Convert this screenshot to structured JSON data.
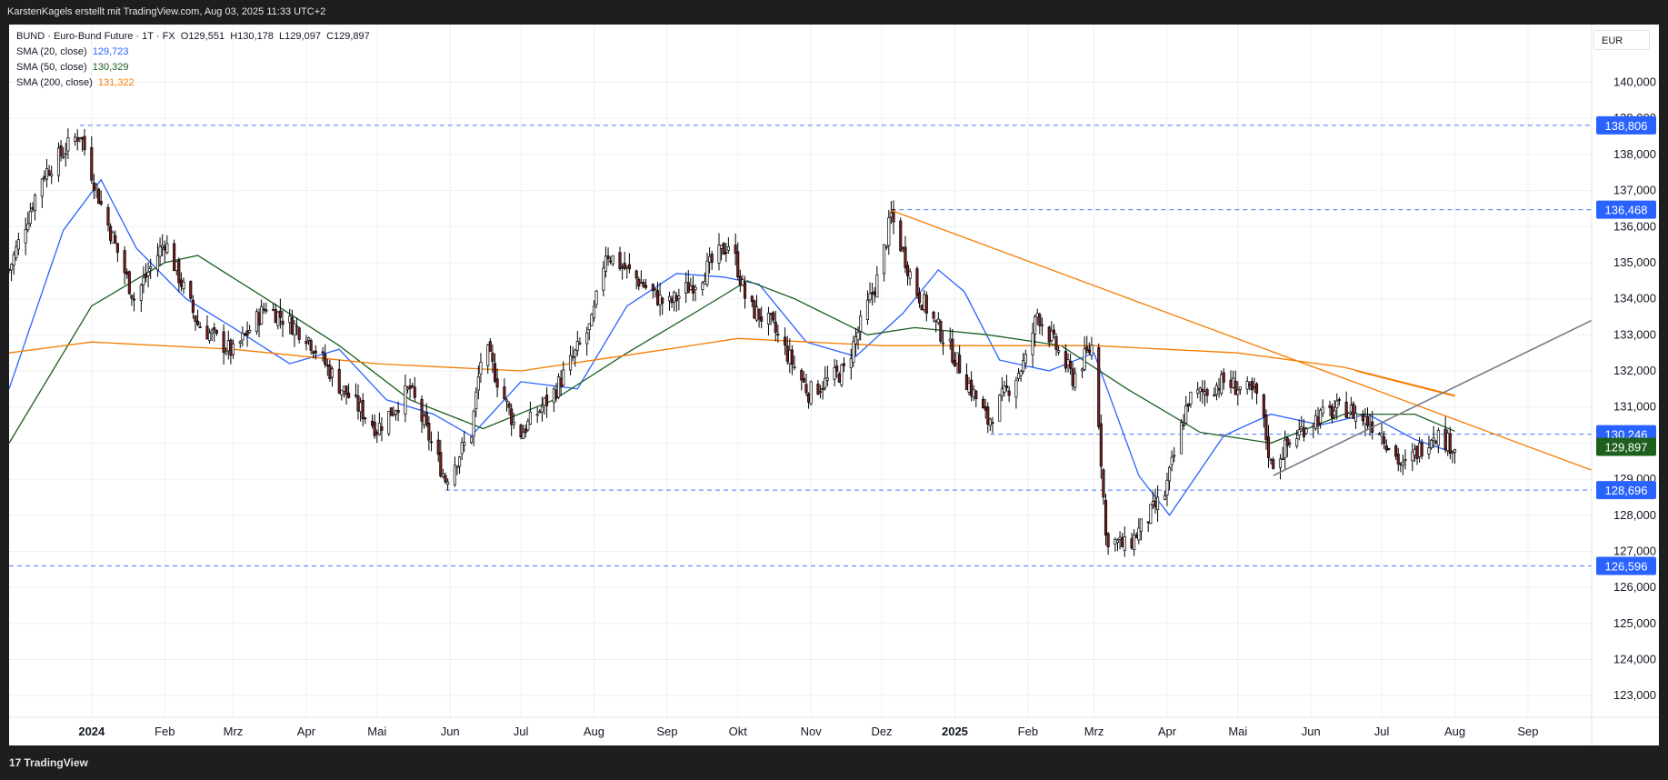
{
  "header": {
    "attribution": "KarstenKagels erstellt mit TradingView.com, Aug 03, 2025 11:33 UTC+2"
  },
  "legend": {
    "symbol_line": "BUND · Euro-Bund Future · 1T · FX",
    "ohlc": {
      "open_label": "O",
      "open": "129,551",
      "high_label": "H",
      "high": "130,178",
      "low_label": "L",
      "low": "129,097",
      "close_label": "C",
      "close": "129,897"
    },
    "indicators": [
      {
        "label": "SMA (20, close)",
        "value": "129,723",
        "color": "#2962ff"
      },
      {
        "label": "SMA (50, close)",
        "value": "130,329",
        "color": "#1b5e20"
      },
      {
        "label": "SMA (200, close)",
        "value": "131,322",
        "color": "#f57c00"
      }
    ]
  },
  "currency": "EUR",
  "footer": {
    "brand": "TradingView",
    "logo_icon": "tradingview-logo-icon"
  },
  "colors": {
    "up_candle": "#ffffff",
    "down_candle": "#7a1f1f",
    "candle_border": "#000000",
    "sma20": "#2962ff",
    "sma50": "#1b5e20",
    "sma200": "#f57c00",
    "level_line": "#2962ff",
    "level_label_bg": "#2962ff",
    "last_price_bg": "#1e5f1e",
    "trendline_down": "#f57c00",
    "trendline_up": "#787b86",
    "grid": "#eef0f4"
  },
  "chart_data": {
    "type": "candlestick",
    "title": "BUND · Euro-Bund Future · 1T · FX",
    "x_tick_labels": [
      "2024",
      "Feb",
      "Mrz",
      "Apr",
      "Mai",
      "Jun",
      "Jul",
      "Aug",
      "Sep",
      "Okt",
      "Nov",
      "Dez",
      "2025",
      "Feb",
      "Mrz",
      "Apr",
      "Mai",
      "Jun",
      "Jul",
      "Aug",
      "Sep"
    ],
    "x_tick_dates": [
      "2024-01-01",
      "2024-02-01",
      "2024-03-01",
      "2024-04-01",
      "2024-05-01",
      "2024-06-01",
      "2024-07-01",
      "2024-08-01",
      "2024-09-01",
      "2024-10-01",
      "2024-11-01",
      "2024-12-01",
      "2025-01-01",
      "2025-02-01",
      "2025-03-01",
      "2025-04-01",
      "2025-05-01",
      "2025-06-01",
      "2025-07-01",
      "2025-08-01",
      "2025-09-01"
    ],
    "x_range": [
      "2023-11-27",
      "2025-09-28"
    ],
    "y_tick_labels": [
      "123,000",
      "124,000",
      "125,000",
      "126,000",
      "127,000",
      "128,000",
      "129,000",
      "130,000",
      "131,000",
      "132,000",
      "133,000",
      "134,000",
      "135,000",
      "136,000",
      "137,000",
      "138,000",
      "139,000",
      "140,000"
    ],
    "ylim": [
      122.4,
      141.6
    ],
    "grid": true,
    "candles_approx": [
      [
        "2023-11-27",
        134.8
      ],
      [
        "2023-12-11",
        137.4
      ],
      [
        "2023-12-27",
        138.6
      ],
      [
        "2024-01-05",
        136.6
      ],
      [
        "2024-01-19",
        134.0
      ],
      [
        "2024-02-01",
        135.6
      ],
      [
        "2024-02-15",
        133.3
      ],
      [
        "2024-03-01",
        132.5
      ],
      [
        "2024-03-15",
        133.8
      ],
      [
        "2024-04-01",
        133.0
      ],
      [
        "2024-04-15",
        131.6
      ],
      [
        "2024-05-01",
        130.4
      ],
      [
        "2024-05-15",
        131.5
      ],
      [
        "2024-05-30",
        129.0
      ],
      [
        "2024-06-10",
        130.3
      ],
      [
        "2024-06-15",
        132.8
      ],
      [
        "2024-06-30",
        130.2
      ],
      [
        "2024-07-15",
        131.4
      ],
      [
        "2024-07-31",
        133.3
      ],
      [
        "2024-08-06",
        135.3
      ],
      [
        "2024-08-20",
        134.5
      ],
      [
        "2024-09-01",
        133.8
      ],
      [
        "2024-09-15",
        134.6
      ],
      [
        "2024-09-28",
        135.6
      ],
      [
        "2024-10-05",
        133.8
      ],
      [
        "2024-10-15",
        133.3
      ],
      [
        "2024-10-31",
        131.4
      ],
      [
        "2024-11-15",
        132.0
      ],
      [
        "2024-11-30",
        134.7
      ],
      [
        "2024-12-05",
        136.3
      ],
      [
        "2024-12-15",
        134.3
      ],
      [
        "2024-12-31",
        132.5
      ],
      [
        "2025-01-15",
        130.6
      ],
      [
        "2025-01-31",
        132.3
      ],
      [
        "2025-02-05",
        133.6
      ],
      [
        "2025-02-20",
        131.8
      ],
      [
        "2025-03-01",
        132.8
      ],
      [
        "2025-03-06",
        127.4
      ],
      [
        "2025-03-15",
        127.1
      ],
      [
        "2025-03-31",
        128.6
      ],
      [
        "2025-04-10",
        131.2
      ],
      [
        "2025-04-25",
        131.7
      ],
      [
        "2025-05-10",
        131.3
      ],
      [
        "2025-05-15",
        129.4
      ],
      [
        "2025-05-31",
        130.6
      ],
      [
        "2025-06-15",
        131.0
      ],
      [
        "2025-06-30",
        130.4
      ],
      [
        "2025-07-10",
        129.3
      ],
      [
        "2025-07-23",
        130.3
      ],
      [
        "2025-08-01",
        129.897
      ]
    ],
    "series": [
      {
        "name": "SMA (20, close)",
        "last_value": 129.723,
        "points": [
          [
            "2023-11-27",
            131.5
          ],
          [
            "2023-12-20",
            135.9
          ],
          [
            "2024-01-05",
            137.3
          ],
          [
            "2024-01-20",
            135.4
          ],
          [
            "2024-02-10",
            134.0
          ],
          [
            "2024-03-01",
            133.2
          ],
          [
            "2024-03-25",
            132.2
          ],
          [
            "2024-04-15",
            132.6
          ],
          [
            "2024-05-05",
            131.2
          ],
          [
            "2024-05-25",
            130.8
          ],
          [
            "2024-06-10",
            130.2
          ],
          [
            "2024-07-01",
            131.7
          ],
          [
            "2024-07-25",
            131.5
          ],
          [
            "2024-08-15",
            133.8
          ],
          [
            "2024-09-05",
            134.7
          ],
          [
            "2024-09-25",
            134.6
          ],
          [
            "2024-10-10",
            134.4
          ],
          [
            "2024-10-30",
            132.8
          ],
          [
            "2024-11-20",
            132.4
          ],
          [
            "2024-12-10",
            133.6
          ],
          [
            "2024-12-25",
            134.8
          ],
          [
            "2025-01-05",
            134.2
          ],
          [
            "2025-01-20",
            132.3
          ],
          [
            "2025-02-10",
            132.0
          ],
          [
            "2025-03-01",
            132.5
          ],
          [
            "2025-03-20",
            129.1
          ],
          [
            "2025-04-02",
            128.0
          ],
          [
            "2025-04-25",
            130.2
          ],
          [
            "2025-05-15",
            130.8
          ],
          [
            "2025-06-05",
            130.5
          ],
          [
            "2025-06-25",
            130.8
          ],
          [
            "2025-07-15",
            130.1
          ],
          [
            "2025-08-01",
            129.723
          ]
        ]
      },
      {
        "name": "SMA (50, close)",
        "last_value": 130.329,
        "points": [
          [
            "2023-11-27",
            130.0
          ],
          [
            "2024-01-01",
            133.8
          ],
          [
            "2024-02-01",
            135.0
          ],
          [
            "2024-02-15",
            135.2
          ],
          [
            "2024-03-15",
            134.0
          ],
          [
            "2024-04-15",
            132.7
          ],
          [
            "2024-05-15",
            131.2
          ],
          [
            "2024-06-15",
            130.4
          ],
          [
            "2024-07-15",
            131.2
          ],
          [
            "2024-08-15",
            132.5
          ],
          [
            "2024-09-15",
            133.7
          ],
          [
            "2024-10-05",
            134.5
          ],
          [
            "2024-10-25",
            134.0
          ],
          [
            "2024-11-25",
            133.0
          ],
          [
            "2024-12-15",
            133.2
          ],
          [
            "2025-01-15",
            133.0
          ],
          [
            "2025-02-15",
            132.7
          ],
          [
            "2025-03-15",
            131.5
          ],
          [
            "2025-04-15",
            130.3
          ],
          [
            "2025-05-15",
            130.0
          ],
          [
            "2025-06-15",
            130.8
          ],
          [
            "2025-07-15",
            130.8
          ],
          [
            "2025-08-01",
            130.329
          ]
        ]
      },
      {
        "name": "SMA (200, close)",
        "last_value": 131.322,
        "points": [
          [
            "2023-11-27",
            132.5
          ],
          [
            "2024-01-01",
            132.8
          ],
          [
            "2024-03-01",
            132.6
          ],
          [
            "2024-05-01",
            132.2
          ],
          [
            "2024-07-01",
            132.0
          ],
          [
            "2024-09-01",
            132.6
          ],
          [
            "2024-10-01",
            132.9
          ],
          [
            "2024-12-01",
            132.7
          ],
          [
            "2025-02-01",
            132.7
          ],
          [
            "2025-03-01",
            132.7
          ],
          [
            "2025-05-01",
            132.5
          ],
          [
            "2025-06-15",
            132.1
          ],
          [
            "2025-08-01",
            131.322
          ]
        ]
      }
    ],
    "horizontal_levels": [
      {
        "value": 138.806,
        "label": "138,806",
        "from": "2023-12-27"
      },
      {
        "value": 136.468,
        "label": "136,468",
        "from": "2024-12-05"
      },
      {
        "value": 130.246,
        "label": "130,246",
        "from": "2025-01-16"
      },
      {
        "value": 128.696,
        "label": "128,696",
        "from": "2024-05-30"
      },
      {
        "value": 126.596,
        "label": "126,596",
        "from": "2023-11-27"
      }
    ],
    "last_price": {
      "value": 129.897,
      "label": "129,897"
    },
    "trendlines": [
      {
        "name": "resistance",
        "from": [
          "2024-12-05",
          136.45
        ],
        "to": [
          "2025-09-28",
          129.25
        ]
      },
      {
        "name": "sma-projection",
        "from": [
          "2025-06-20",
          132.0
        ],
        "to": [
          "2025-08-01",
          131.3
        ]
      },
      {
        "name": "support-channel",
        "from": [
          "2025-05-16",
          129.1
        ],
        "to": [
          "2025-09-28",
          133.4
        ]
      }
    ]
  }
}
